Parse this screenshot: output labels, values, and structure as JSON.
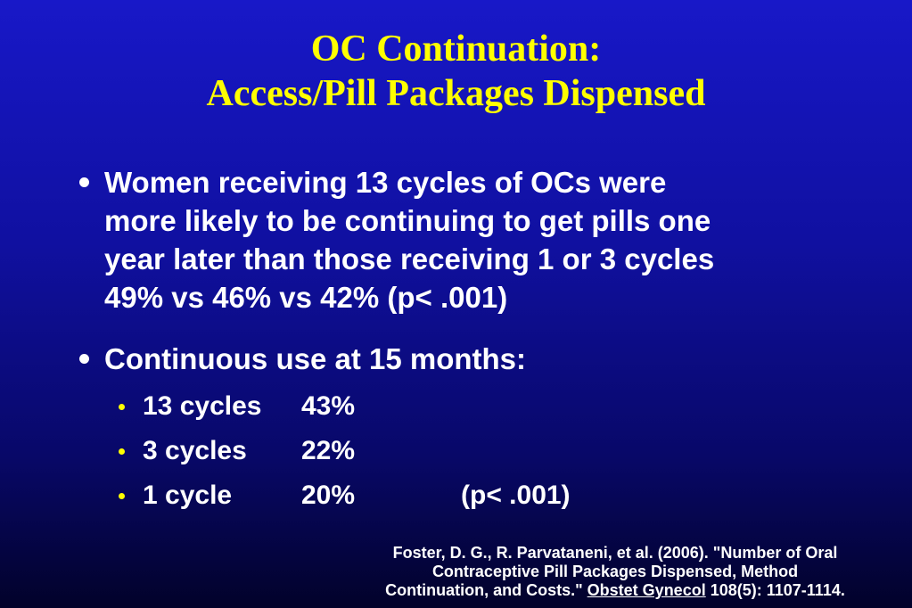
{
  "title": {
    "lines": [
      "OC Continuation:",
      "Access/Pill Packages Dispensed"
    ]
  },
  "bullets": [
    {
      "lines": [
        "Women receiving 13 cycles of OCs were",
        "more likely to be continuing to get pills one",
        "year later than those receiving 1 or 3 cycles",
        "49% vs 46% vs 42% (p< .001)"
      ]
    },
    {
      "lines": [
        "Continuous use at 15 months:"
      ],
      "items": [
        {
          "label": "13 cycles",
          "value": "43%"
        },
        {
          "label": "3 cycles",
          "value": "22%"
        },
        {
          "label": "1 cycle",
          "value": "20%",
          "note": "(p< .001)"
        }
      ]
    }
  ],
  "citation": {
    "lines": [
      "Foster, D. G., R. Parvataneni, et al. (2006). \"Number of Oral",
      "Contraceptive Pill Packages Dispensed, Method"
    ],
    "last_before": "Continuation, and Costs.\"",
    "journal": "Obstet Gynecol",
    "last_after": "108(5): 1107-1114."
  }
}
